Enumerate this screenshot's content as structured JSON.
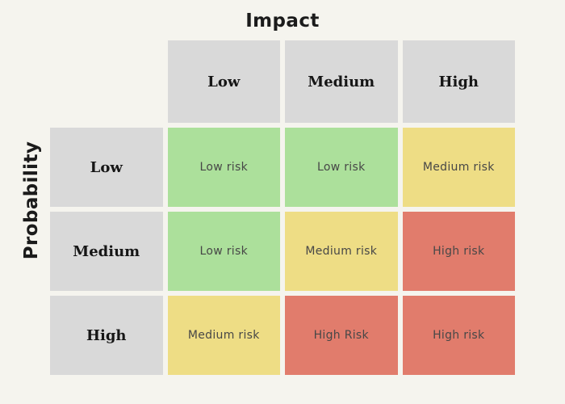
{
  "colors": {
    "background": "#f5f4ee",
    "header_cell": "#d9d9d9",
    "low_risk": "#ace09b",
    "medium_risk": "#eedd85",
    "high_risk": "#e17c6c",
    "axis_title_text": "#1b1b1b",
    "header_text": "#161616",
    "cell_text": "#474747"
  },
  "matrix": {
    "x_axis_title": "Impact",
    "y_axis_title": "Probability",
    "column_headers": [
      "Low",
      "Medium",
      "High"
    ],
    "row_headers": [
      "Low",
      "Medium",
      "High"
    ],
    "cells": [
      [
        {
          "label": "Low risk",
          "bg": "#ace09b"
        },
        {
          "label": "Low risk",
          "bg": "#ace09b"
        },
        {
          "label": "Medium risk",
          "bg": "#eedd85"
        }
      ],
      [
        {
          "label": "Low risk",
          "bg": "#ace09b"
        },
        {
          "label": "Medium risk",
          "bg": "#eedd85"
        },
        {
          "label": "High risk",
          "bg": "#e17c6c"
        }
      ],
      [
        {
          "label": "Medium risk",
          "bg": "#eedd85"
        },
        {
          "label": "High Risk",
          "bg": "#e17c6c"
        },
        {
          "label": "High risk",
          "bg": "#e17c6c"
        }
      ]
    ]
  }
}
